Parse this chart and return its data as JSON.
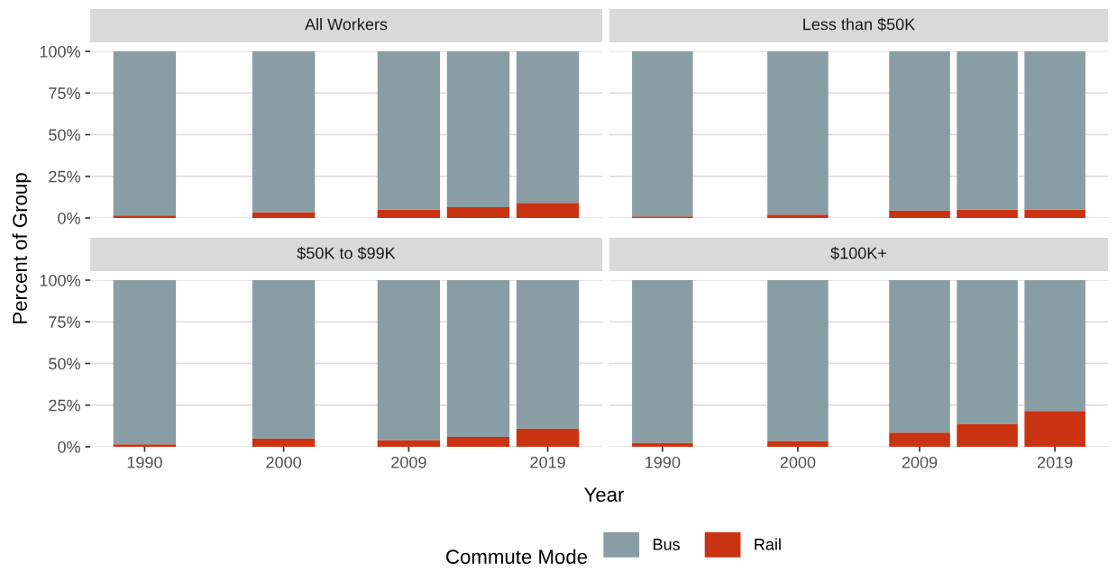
{
  "chart_data": [
    {
      "type": "bar",
      "title": "All Workers",
      "ylabel": "Percent of Group",
      "legend_title": "Commute Mode",
      "legend": "bottom",
      "stacked": true,
      "grid": "y",
      "tick_labels": "y",
      "x": [
        1990,
        2000,
        2009,
        2014,
        2019
      ],
      "xlim": [
        1986.08,
        2022.92
      ],
      "ylim": [
        0,
        100
      ],
      "yticks": [
        {
          "value": 0,
          "label": "0%"
        },
        {
          "value": 25,
          "label": "25%"
        },
        {
          "value": 50,
          "label": "50%"
        },
        {
          "value": 75,
          "label": "75%"
        },
        {
          "value": 100,
          "label": "100%"
        }
      ],
      "series": [
        {
          "name": "Rail",
          "color": "#c93312",
          "values": [
            1.5,
            3.5,
            5,
            6.5,
            9
          ]
        },
        {
          "name": "Bus",
          "color": "#899da4",
          "values": [
            98.5,
            96.5,
            95,
            93.5,
            91
          ]
        }
      ]
    },
    {
      "type": "bar",
      "title": "Less than $50K",
      "stacked": true,
      "grid": "y",
      "tick_labels": false,
      "x": [
        1990,
        2000,
        2009,
        2014,
        2019
      ],
      "xlim": [
        1986.08,
        2022.92
      ],
      "ylim": [
        0,
        100
      ],
      "yticks": [
        {
          "value": 0,
          "label": null
        },
        {
          "value": 25,
          "label": null
        },
        {
          "value": 50,
          "label": null
        },
        {
          "value": 75,
          "label": null
        },
        {
          "value": 100,
          "label": null
        }
      ],
      "series": [
        {
          "color": "#c93312",
          "values": [
            1,
            2,
            4.5,
            5,
            5
          ]
        },
        {
          "color": "#899da4",
          "values": [
            99,
            98,
            95.5,
            95,
            95
          ]
        }
      ]
    },
    {
      "type": "bar",
      "title": "$50K to $99K",
      "xlabel": "Year",
      "stacked": true,
      "grid": "y",
      "x": [
        1990,
        2000,
        2009,
        2014,
        2019
      ],
      "xlim": [
        1986.08,
        2022.92
      ],
      "xticks": [
        1990,
        2000,
        2009,
        2019
      ],
      "ylim": [
        0,
        100
      ],
      "yticks": [
        {
          "value": 0,
          "label": "0%"
        },
        {
          "value": 25,
          "label": "25%"
        },
        {
          "value": 50,
          "label": "50%"
        },
        {
          "value": 75,
          "label": "75%"
        },
        {
          "value": 100,
          "label": "100%"
        }
      ],
      "series": [
        {
          "color": "#c93312",
          "values": [
            1.5,
            5,
            4,
            6,
            11
          ]
        },
        {
          "color": "#899da4",
          "values": [
            98.5,
            95,
            96,
            94,
            89
          ]
        }
      ]
    },
    {
      "type": "bar",
      "title": "$100K+",
      "stacked": true,
      "grid": "y",
      "tick_labels": "x",
      "x": [
        1990,
        2000,
        2009,
        2014,
        2019
      ],
      "xlim": [
        1986.08,
        2022.92
      ],
      "xticks": [
        1990,
        2000,
        2009,
        2019
      ],
      "ylim": [
        0,
        100
      ],
      "yticks": [
        {
          "value": 0,
          "label": null
        },
        {
          "value": 25,
          "label": null
        },
        {
          "value": 50,
          "label": null
        },
        {
          "value": 75,
          "label": null
        },
        {
          "value": 100,
          "label": null
        }
      ],
      "series": [
        {
          "color": "#c93312",
          "values": [
            2.5,
            3.5,
            8.5,
            13.5,
            21.5
          ]
        },
        {
          "color": "#899da4",
          "values": [
            97.5,
            96.5,
            91.5,
            86.5,
            78.5
          ]
        }
      ]
    }
  ]
}
